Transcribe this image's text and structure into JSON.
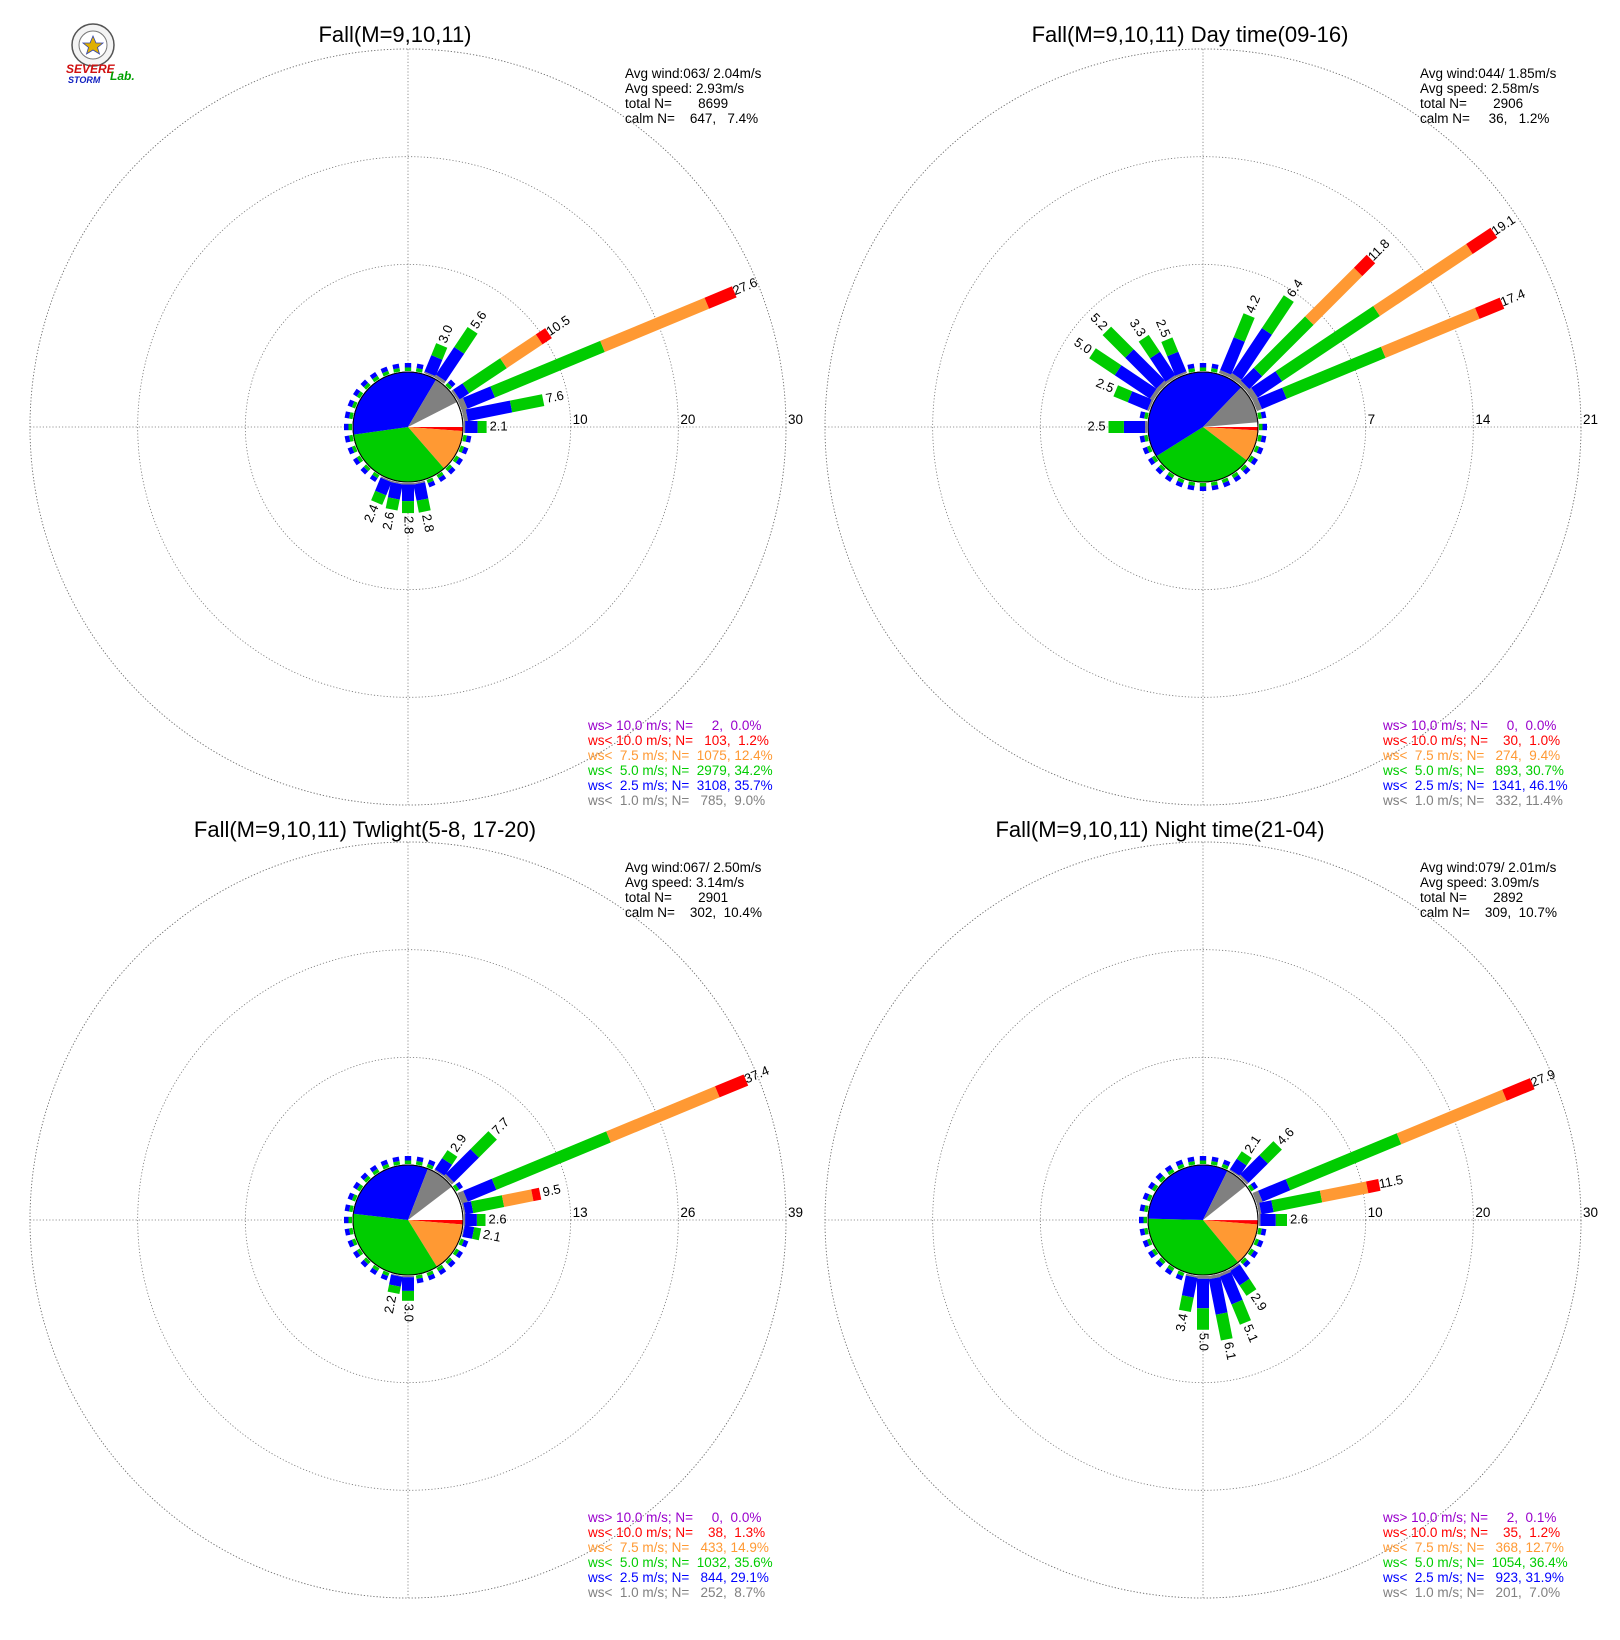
{
  "logo": {
    "lab_text": "Lab.",
    "severe_text": "SEVERE",
    "storm_text": "STORM"
  },
  "colors": {
    "gt10": "#9900cc",
    "lt10": "#ff0000",
    "lt75": "#ff9933",
    "lt50": "#00cc00",
    "lt25": "#0000ff",
    "lt10calm": "#808080"
  },
  "chart_data": [
    {
      "type": "wind-rose",
      "title": "Fall(M=9,10,11)",
      "stats": [
        "Avg wind:063/ 2.04m/s",
        "Avg speed: 2.93m/s",
        "total N=       8699",
        "calm N=    647,   7.4%"
      ],
      "rings": [
        10,
        20,
        30
      ],
      "rmax": 30,
      "pie": [
        {
          "pct": 0.0,
          "color": "#9900cc"
        },
        {
          "pct": 1.2,
          "color": "#ff0000"
        },
        {
          "pct": 12.4,
          "color": "#ff9933"
        },
        {
          "pct": 34.2,
          "color": "#00cc00"
        },
        {
          "pct": 35.7,
          "color": "#0000ff"
        },
        {
          "pct": 9.0,
          "color": "#808080"
        }
      ],
      "bars": [
        {
          "dir": 22.5,
          "total": 3.0,
          "label": "3.0"
        },
        {
          "dir": 33.75,
          "total": 5.6,
          "label": "5.6"
        },
        {
          "dir": 56.25,
          "total": 10.5,
          "label": "10.5"
        },
        {
          "dir": 67.5,
          "total": 27.6,
          "label": "27.6"
        },
        {
          "dir": 78.75,
          "total": 7.6,
          "label": "7.6"
        },
        {
          "dir": 90,
          "total": 2.1,
          "label": "2.1"
        },
        {
          "dir": 168.75,
          "total": 2.8,
          "label": "2.8"
        },
        {
          "dir": 180,
          "total": 2.8,
          "label": "2.8"
        },
        {
          "dir": 191.25,
          "total": 2.6,
          "label": "2.6"
        },
        {
          "dir": 202.5,
          "total": 2.4,
          "label": "2.4"
        }
      ],
      "legend": [
        {
          "text": "ws> 10.0 m/s; N=     2,  0.0%",
          "color": "#9900cc"
        },
        {
          "text": "ws< 10.0 m/s; N=   103,  1.2%",
          "color": "#ff0000"
        },
        {
          "text": "ws<  7.5 m/s; N=  1075, 12.4%",
          "color": "#ff9933"
        },
        {
          "text": "ws<  5.0 m/s; N=  2979, 34.2%",
          "color": "#00cc00"
        },
        {
          "text": "ws<  2.5 m/s; N=  3108, 35.7%",
          "color": "#0000ff"
        },
        {
          "text": "ws<  1.0 m/s; N=   785,  9.0%",
          "color": "#808080"
        }
      ]
    },
    {
      "type": "wind-rose",
      "title": "Fall(M=9,10,11) Day time(09-16)",
      "stats": [
        "Avg wind:044/ 1.85m/s",
        "Avg speed: 2.58m/s",
        "total N=       2906",
        "calm N=     36,   1.2%"
      ],
      "rings": [
        7,
        14,
        21
      ],
      "rmax": 21,
      "pie": [
        {
          "pct": 0.0,
          "color": "#9900cc"
        },
        {
          "pct": 1.0,
          "color": "#ff0000"
        },
        {
          "pct": 9.4,
          "color": "#ff9933"
        },
        {
          "pct": 30.7,
          "color": "#00cc00"
        },
        {
          "pct": 46.1,
          "color": "#0000ff"
        },
        {
          "pct": 11.4,
          "color": "#808080"
        }
      ],
      "bars": [
        {
          "dir": 292.5,
          "total": 2.5,
          "label": "2.5"
        },
        {
          "dir": 303.75,
          "total": 5.0,
          "label": "5.0"
        },
        {
          "dir": 315,
          "total": 5.2,
          "label": "5.2"
        },
        {
          "dir": 326.25,
          "total": 3.3,
          "label": "3.3"
        },
        {
          "dir": 337.5,
          "total": 2.5,
          "label": "2.5"
        },
        {
          "dir": 22.5,
          "total": 4.2,
          "label": "4.2"
        },
        {
          "dir": 33.75,
          "total": 6.4,
          "label": "6.4"
        },
        {
          "dir": 45,
          "total": 11.8,
          "label": "11.8"
        },
        {
          "dir": 56.25,
          "total": 19.1,
          "label": "19.1"
        },
        {
          "dir": 67.5,
          "total": 17.4,
          "label": "17.4"
        },
        {
          "dir": 270,
          "total": 2.5,
          "label": "2.5"
        }
      ],
      "legend": [
        {
          "text": "ws> 10.0 m/s; N=     0,  0.0%",
          "color": "#9900cc"
        },
        {
          "text": "ws< 10.0 m/s; N=    30,  1.0%",
          "color": "#ff0000"
        },
        {
          "text": "ws<  7.5 m/s; N=   274,  9.4%",
          "color": "#ff9933"
        },
        {
          "text": "ws<  5.0 m/s; N=   893, 30.7%",
          "color": "#00cc00"
        },
        {
          "text": "ws<  2.5 m/s; N=  1341, 46.1%",
          "color": "#0000ff"
        },
        {
          "text": "ws<  1.0 m/s; N=   332, 11.4%",
          "color": "#808080"
        }
      ]
    },
    {
      "type": "wind-rose",
      "title": "Fall(M=9,10,11) Twlight(5-8, 17-20)",
      "stats": [
        "Avg wind:067/ 2.50m/s",
        "Avg speed: 3.14m/s",
        "total N=       2901",
        "calm N=    302,  10.4%"
      ],
      "rings": [
        13,
        26,
        39
      ],
      "rmax": 39,
      "pie": [
        {
          "pct": 0.0,
          "color": "#9900cc"
        },
        {
          "pct": 1.3,
          "color": "#ff0000"
        },
        {
          "pct": 14.9,
          "color": "#ff9933"
        },
        {
          "pct": 35.6,
          "color": "#00cc00"
        },
        {
          "pct": 29.1,
          "color": "#0000ff"
        },
        {
          "pct": 8.7,
          "color": "#808080"
        }
      ],
      "bars": [
        {
          "dir": 33.75,
          "total": 2.9,
          "label": "2.9"
        },
        {
          "dir": 45,
          "total": 7.7,
          "label": "7.7"
        },
        {
          "dir": 67.5,
          "total": 37.4,
          "label": "37.4"
        },
        {
          "dir": 78.75,
          "total": 9.5,
          "label": "9.5"
        },
        {
          "dir": 90,
          "total": 2.6,
          "label": "2.6"
        },
        {
          "dir": 101.25,
          "total": 2.1,
          "label": "2.1"
        },
        {
          "dir": 180,
          "total": 3.0,
          "label": "3.0"
        },
        {
          "dir": 191.25,
          "total": 2.2,
          "label": "2.2"
        }
      ],
      "legend": [
        {
          "text": "ws> 10.0 m/s; N=     0,  0.0%",
          "color": "#9900cc"
        },
        {
          "text": "ws< 10.0 m/s; N=    38,  1.3%",
          "color": "#ff0000"
        },
        {
          "text": "ws<  7.5 m/s; N=   433, 14.9%",
          "color": "#ff9933"
        },
        {
          "text": "ws<  5.0 m/s; N=  1032, 35.6%",
          "color": "#00cc00"
        },
        {
          "text": "ws<  2.5 m/s; N=   844, 29.1%",
          "color": "#0000ff"
        },
        {
          "text": "ws<  1.0 m/s; N=   252,  8.7%",
          "color": "#808080"
        }
      ]
    },
    {
      "type": "wind-rose",
      "title": "Fall(M=9,10,11) Night time(21-04)",
      "stats": [
        "Avg wind:079/ 2.01m/s",
        "Avg speed: 3.09m/s",
        "total N=       2892",
        "calm N=    309,  10.7%"
      ],
      "rings": [
        10,
        20,
        30
      ],
      "rmax": 30,
      "pie": [
        {
          "pct": 0.1,
          "color": "#9900cc"
        },
        {
          "pct": 1.2,
          "color": "#ff0000"
        },
        {
          "pct": 12.7,
          "color": "#ff9933"
        },
        {
          "pct": 36.4,
          "color": "#00cc00"
        },
        {
          "pct": 31.9,
          "color": "#0000ff"
        },
        {
          "pct": 7.0,
          "color": "#808080"
        }
      ],
      "bars": [
        {
          "dir": 33.75,
          "total": 2.1,
          "label": "2.1"
        },
        {
          "dir": 45,
          "total": 4.6,
          "label": "4.6"
        },
        {
          "dir": 67.5,
          "total": 27.9,
          "label": "27.9"
        },
        {
          "dir": 78.75,
          "total": 11.5,
          "label": "11.5"
        },
        {
          "dir": 90,
          "total": 2.6,
          "label": "2.6"
        },
        {
          "dir": 146.25,
          "total": 2.9,
          "label": "2.9"
        },
        {
          "dir": 157.5,
          "total": 5.1,
          "label": "5.1"
        },
        {
          "dir": 168.75,
          "total": 6.1,
          "label": "6.1"
        },
        {
          "dir": 180,
          "total": 5.0,
          "label": "5.0"
        },
        {
          "dir": 191.25,
          "total": 3.4,
          "label": "3.4"
        }
      ],
      "legend": [
        {
          "text": "ws> 10.0 m/s; N=     2,  0.1%",
          "color": "#9900cc"
        },
        {
          "text": "ws< 10.0 m/s; N=    35,  1.2%",
          "color": "#ff0000"
        },
        {
          "text": "ws<  7.5 m/s; N=   368, 12.7%",
          "color": "#ff9933"
        },
        {
          "text": "ws<  5.0 m/s; N=  1054, 36.4%",
          "color": "#00cc00"
        },
        {
          "text": "ws<  2.5 m/s; N=   923, 31.9%",
          "color": "#0000ff"
        },
        {
          "text": "ws<  1.0 m/s; N=   201,  7.0%",
          "color": "#808080"
        }
      ]
    }
  ]
}
